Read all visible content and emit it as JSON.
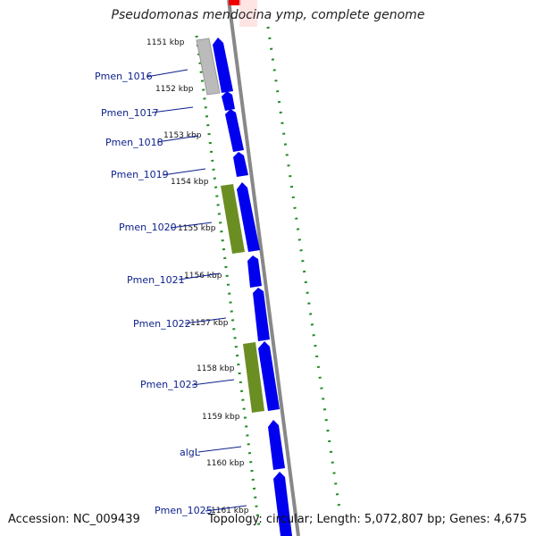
{
  "title": "Pseudomonas mendocina ymp, complete genome",
  "accession": "Accession: NC_009439",
  "topology": "Topology: circular; Length: 5,072,807 bp; Genes: 4,675",
  "colors": {
    "forward_gene": "#0000ee",
    "pseudo_gene": "#bbbbbb",
    "olive_gene": "#6b8e23",
    "backbone": "#888888",
    "tick": "#228b22",
    "label": "#0b1f8a"
  },
  "kbp_ticks": [
    "1151 kbp",
    "1152 kbp",
    "1153 kbp",
    "1154 kbp",
    "1155 kbp",
    "1156 kbp",
    "1157 kbp",
    "1158 kbp",
    "1159 kbp",
    "1160 kbp",
    "1161 kbp"
  ],
  "gene_labels": [
    "Pmen_1016",
    "Pmen_1017",
    "Pmen_1018",
    "Pmen_1019",
    "Pmen_1020",
    "Pmen_1021",
    "Pmen_1022",
    "Pmen_1023",
    "algL",
    "Pmen_1025"
  ]
}
